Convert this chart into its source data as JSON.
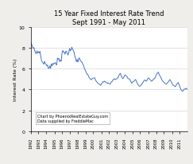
{
  "title": "15 Year Fixed Interest Rate Trend\nSept 1991 - May 2011",
  "ylabel": "Interest Rate (%)",
  "annotation_line1": "Chart by PhoenixRealEstateGuy.com",
  "annotation_line2": "Data supplied by FreddieMac",
  "ylim": [
    0,
    10
  ],
  "yticks": [
    0,
    2,
    4,
    6,
    8,
    10
  ],
  "line_color": "#4472C4",
  "background_color": "#f0eeeb",
  "plot_bg_color": "#ffffff",
  "x_labels": [
    "1992",
    "1993",
    "1994",
    "1995",
    "1996",
    "1997",
    "1998",
    "1999",
    "2000",
    "2001",
    "2002",
    "2003",
    "2004",
    "2005",
    "2006",
    "2007",
    "2008",
    "2009",
    "2010",
    "2011"
  ],
  "rates": [
    8.48,
    8.36,
    8.12,
    7.96,
    8.04,
    7.76,
    7.56,
    7.44,
    7.72,
    7.52,
    7.64,
    7.52,
    7.68,
    7.24,
    6.8,
    6.64,
    6.56,
    6.44,
    6.72,
    6.48,
    6.44,
    6.28,
    6.36,
    6.04,
    6.04,
    6.28,
    6.04,
    6.48,
    6.28,
    6.52,
    6.44,
    6.52,
    6.6,
    6.44,
    6.36,
    7.04,
    6.92,
    7.0,
    6.68,
    6.84,
    6.72,
    7.52,
    7.76,
    7.6,
    7.6,
    7.4,
    7.68,
    7.68,
    7.44,
    7.32,
    7.6,
    7.96,
    7.72,
    7.84,
    8.08,
    7.84,
    7.76,
    7.56,
    7.16,
    7.0,
    6.68,
    6.88,
    6.64,
    7.0,
    7.04,
    6.8,
    6.72,
    6.68,
    6.48,
    6.4,
    6.16,
    5.96,
    5.8,
    5.64,
    5.48,
    5.44,
    5.28,
    5.12,
    5.04,
    4.96,
    4.96,
    5.08,
    5.08,
    5.12,
    5.12,
    4.96,
    4.8,
    4.72,
    4.64,
    4.56,
    4.52,
    4.48,
    4.4,
    4.56,
    4.64,
    4.76,
    4.72,
    4.8,
    4.72,
    4.72,
    4.64,
    4.6,
    4.64,
    4.56,
    4.52,
    4.56,
    4.76,
    4.76,
    4.88,
    5.0,
    5.04,
    4.96,
    4.96,
    5.04,
    5.12,
    5.16,
    5.36,
    5.48,
    5.56,
    5.28,
    5.2,
    5.04,
    5.12,
    5.28,
    5.4,
    5.36,
    5.28,
    5.2,
    5.04,
    5.04,
    5.0,
    4.88,
    4.72,
    4.6,
    4.72,
    4.76,
    4.8,
    4.92,
    4.96,
    4.8,
    4.64,
    4.48,
    4.4,
    4.32,
    4.32,
    4.4,
    4.52,
    4.6,
    4.72,
    4.84,
    4.92,
    4.88,
    4.8,
    4.88,
    5.04,
    5.12,
    5.04,
    4.96,
    4.88,
    4.8,
    4.84,
    4.96,
    5.04,
    5.04,
    5.2,
    5.36,
    5.52,
    5.6,
    5.68,
    5.44,
    5.32,
    5.2,
    5.04,
    4.88,
    4.8,
    4.72,
    4.64,
    4.56,
    4.52,
    4.56,
    4.64,
    4.72,
    4.84,
    4.96,
    4.88,
    4.72,
    4.6,
    4.44,
    4.4,
    4.36,
    4.28,
    4.32,
    4.52,
    4.56,
    4.68,
    4.52,
    4.36,
    4.12,
    3.96,
    3.88,
    3.84,
    3.92,
    4.04,
    4.04,
    4.08,
    4.12,
    4.0
  ]
}
